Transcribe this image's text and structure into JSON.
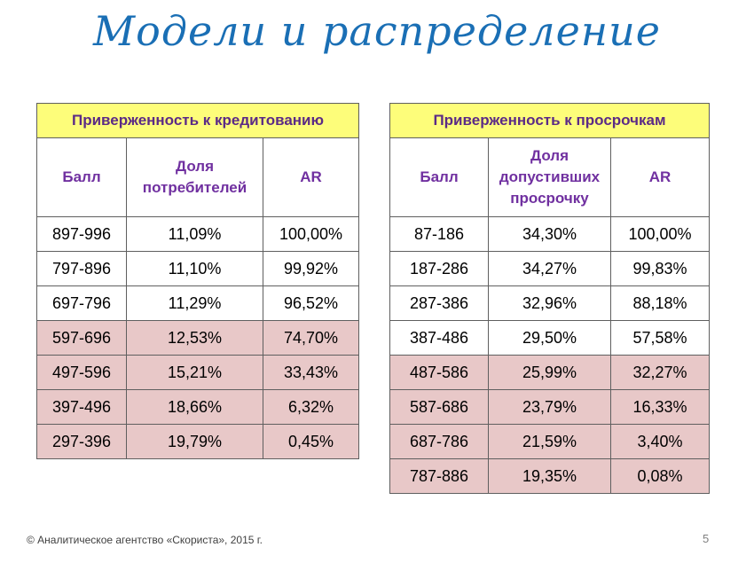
{
  "title": "Модели и распределение",
  "table_left": {
    "group_header": "Приверженность к кредитованию",
    "columns": [
      "Балл",
      "Доля потребителей",
      "AR"
    ],
    "rows": [
      {
        "score": "897-996",
        "share": "11,09%",
        "ar": "100,00%",
        "highlight": false
      },
      {
        "score": "797-896",
        "share": "11,10%",
        "ar": "99,92%",
        "highlight": false
      },
      {
        "score": "697-796",
        "share": "11,29%",
        "ar": "96,52%",
        "highlight": false
      },
      {
        "score": "597-696",
        "share": "12,53%",
        "ar": "74,70%",
        "highlight": true
      },
      {
        "score": "497-596",
        "share": "15,21%",
        "ar": "33,43%",
        "highlight": true
      },
      {
        "score": "397-496",
        "share": "18,66%",
        "ar": "6,32%",
        "highlight": true
      },
      {
        "score": "297-396",
        "share": "19,79%",
        "ar": "0,45%",
        "highlight": true
      }
    ]
  },
  "table_right": {
    "group_header": "Приверженность к просрочкам",
    "columns": [
      "Балл",
      "Доля допустивших просрочку",
      "AR"
    ],
    "rows": [
      {
        "score": "87-186",
        "share": "34,30%",
        "ar": "100,00%",
        "highlight": false
      },
      {
        "score": "187-286",
        "share": "34,27%",
        "ar": "99,83%",
        "highlight": false
      },
      {
        "score": "287-386",
        "share": "32,96%",
        "ar": "88,18%",
        "highlight": false
      },
      {
        "score": "387-486",
        "share": "29,50%",
        "ar": "57,58%",
        "highlight": false
      },
      {
        "score": "487-586",
        "share": "25,99%",
        "ar": "32,27%",
        "highlight": true
      },
      {
        "score": "587-686",
        "share": "23,79%",
        "ar": "16,33%",
        "highlight": true
      },
      {
        "score": "687-786",
        "share": "21,59%",
        "ar": "3,40%",
        "highlight": true
      },
      {
        "score": "787-886",
        "share": "19,35%",
        "ar": "0,08%",
        "highlight": true
      }
    ]
  },
  "footer": "©  Аналитическое  агентство «Скориста», 2015 г.",
  "page_number": "5",
  "colors": {
    "title": "#1a6fb5",
    "group_header_bg": "#fdfd7a",
    "header_text": "#7030a0",
    "highlight_row": "#e8c8c8"
  }
}
